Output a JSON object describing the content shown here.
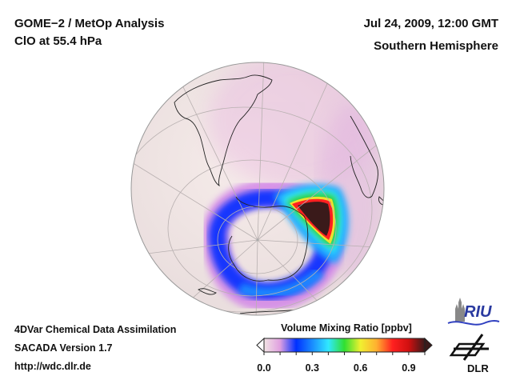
{
  "header": {
    "title_line1": "GOME−2 / MetOp Analysis",
    "title_line2": "ClO at 55.4 hPa",
    "date": "Jul 24, 2009, 12:00 GMT",
    "region": "Southern Hemisphere"
  },
  "footer": {
    "line1": "4DVar Chemical Data Assimilation",
    "line2": "SACADA Version 1.7",
    "url": "http://wdc.dlr.de"
  },
  "colorbar": {
    "title": "Volume Mixing Ratio [ppbv]",
    "min": 0.0,
    "max": 1.0,
    "ticks": [
      "0.0",
      "0.3",
      "0.6",
      "0.9"
    ],
    "tick_values": [
      0.0,
      0.3,
      0.6,
      0.9
    ],
    "colors": [
      "#f2e4e4",
      "#e0a0e0",
      "#0030ff",
      "#1a8cff",
      "#30e8ff",
      "#30e030",
      "#f0f030",
      "#ffb030",
      "#ff2020",
      "#d01010",
      "#3a1a1a"
    ]
  },
  "logos": {
    "riu": "RIU",
    "dlr": "DLR"
  },
  "map": {
    "projection": "orthographic",
    "hemisphere": "south",
    "ocean_color": "#efe4e4",
    "grid_color": "#b8b0b0",
    "coast_color": "#222222"
  }
}
